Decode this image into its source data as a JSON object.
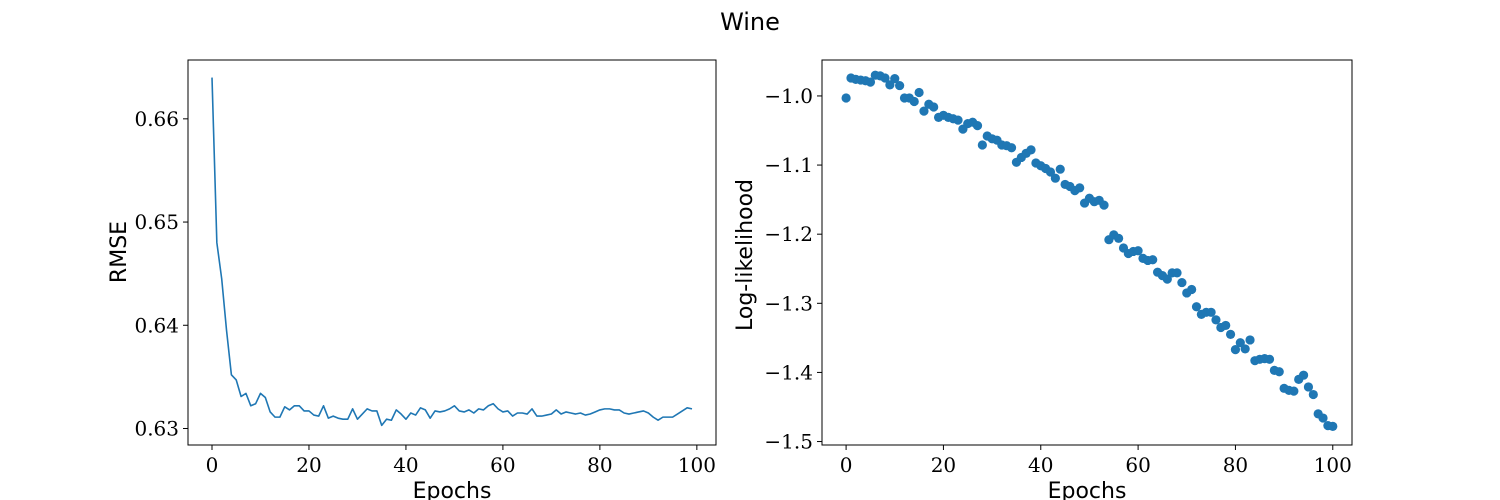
{
  "title": "Wine",
  "colors": {
    "series": "#1f77b4"
  },
  "chart_data": [
    {
      "type": "line",
      "xlabel": "Epochs",
      "ylabel": "RMSE",
      "xlim": [
        -4.95,
        103.95
      ],
      "ylim": [
        0.6284,
        0.6657
      ],
      "xticks": [
        0,
        20,
        40,
        60,
        80,
        100
      ],
      "xtick_labels": [
        "0",
        "20",
        "40",
        "60",
        "80",
        "100"
      ],
      "yticks": [
        0.63,
        0.64,
        0.65,
        0.66
      ],
      "ytick_labels": [
        "0.63",
        "0.64",
        "0.65",
        "0.66"
      ],
      "grid": false,
      "x_start": 0,
      "x_step": 1,
      "y": [
        0.664,
        0.648,
        0.6445,
        0.6395,
        0.6352,
        0.6347,
        0.6331,
        0.6334,
        0.6322,
        0.6324,
        0.6334,
        0.633,
        0.6316,
        0.6311,
        0.6311,
        0.6321,
        0.6318,
        0.6322,
        0.6322,
        0.6317,
        0.6317,
        0.6313,
        0.6312,
        0.6322,
        0.631,
        0.6312,
        0.631,
        0.6309,
        0.6309,
        0.6319,
        0.6309,
        0.6314,
        0.6319,
        0.6317,
        0.6317,
        0.6303,
        0.6309,
        0.6308,
        0.6318,
        0.6314,
        0.6309,
        0.6315,
        0.6313,
        0.632,
        0.6318,
        0.631,
        0.6317,
        0.6316,
        0.6317,
        0.6319,
        0.6322,
        0.6317,
        0.6316,
        0.6318,
        0.6315,
        0.6319,
        0.6318,
        0.6322,
        0.6324,
        0.6319,
        0.6316,
        0.6317,
        0.6312,
        0.6315,
        0.6315,
        0.6314,
        0.6319,
        0.6312,
        0.6312,
        0.6313,
        0.6314,
        0.6318,
        0.6314,
        0.6316,
        0.6315,
        0.6314,
        0.6315,
        0.6313,
        0.6314,
        0.6316,
        0.6318,
        0.6319,
        0.6319,
        0.6318,
        0.6318,
        0.6315,
        0.6314,
        0.6315,
        0.6316,
        0.6317,
        0.6315,
        0.6311,
        0.6308,
        0.6311,
        0.6311,
        0.6311,
        0.6314,
        0.6317,
        0.632,
        0.6319
      ]
    },
    {
      "type": "scatter",
      "xlabel": "Epochs",
      "ylabel": "Log-likelihood",
      "xlim": [
        -4.95,
        103.95
      ],
      "ylim": [
        -1.505,
        -0.948
      ],
      "xticks": [
        0,
        20,
        40,
        60,
        80,
        100
      ],
      "xtick_labels": [
        "0",
        "20",
        "40",
        "60",
        "80",
        "100"
      ],
      "yticks": [
        -1.0,
        -1.1,
        -1.2,
        -1.3,
        -1.4,
        -1.5
      ],
      "ytick_labels": [
        "−1.0",
        "−1.1",
        "−1.2",
        "−1.3",
        "−1.4",
        "−1.5"
      ],
      "grid": false,
      "x_start": 0,
      "x_step": 1,
      "y": [
        -1.003,
        -0.974,
        -0.976,
        -0.977,
        -0.978,
        -0.98,
        -0.97,
        -0.971,
        -0.974,
        -0.984,
        -0.975,
        -0.985,
        -1.003,
        -1.003,
        -1.008,
        -0.995,
        -1.022,
        -1.012,
        -1.016,
        -1.031,
        -1.028,
        -1.031,
        -1.033,
        -1.035,
        -1.048,
        -1.04,
        -1.038,
        -1.043,
        -1.071,
        -1.058,
        -1.062,
        -1.064,
        -1.071,
        -1.072,
        -1.075,
        -1.096,
        -1.089,
        -1.083,
        -1.078,
        -1.097,
        -1.101,
        -1.105,
        -1.11,
        -1.119,
        -1.106,
        -1.128,
        -1.131,
        -1.137,
        -1.133,
        -1.155,
        -1.148,
        -1.153,
        -1.151,
        -1.158,
        -1.208,
        -1.201,
        -1.206,
        -1.22,
        -1.228,
        -1.225,
        -1.224,
        -1.235,
        -1.238,
        -1.237,
        -1.255,
        -1.26,
        -1.265,
        -1.256,
        -1.256,
        -1.27,
        -1.285,
        -1.28,
        -1.305,
        -1.316,
        -1.313,
        -1.313,
        -1.324,
        -1.335,
        -1.332,
        -1.345,
        -1.367,
        -1.357,
        -1.366,
        -1.353,
        -1.383,
        -1.381,
        -1.38,
        -1.381,
        -1.397,
        -1.399,
        -1.423,
        -1.426,
        -1.427,
        -1.41,
        -1.404,
        -1.421,
        -1.432,
        -1.46,
        -1.466,
        -1.477,
        -1.478
      ]
    }
  ]
}
